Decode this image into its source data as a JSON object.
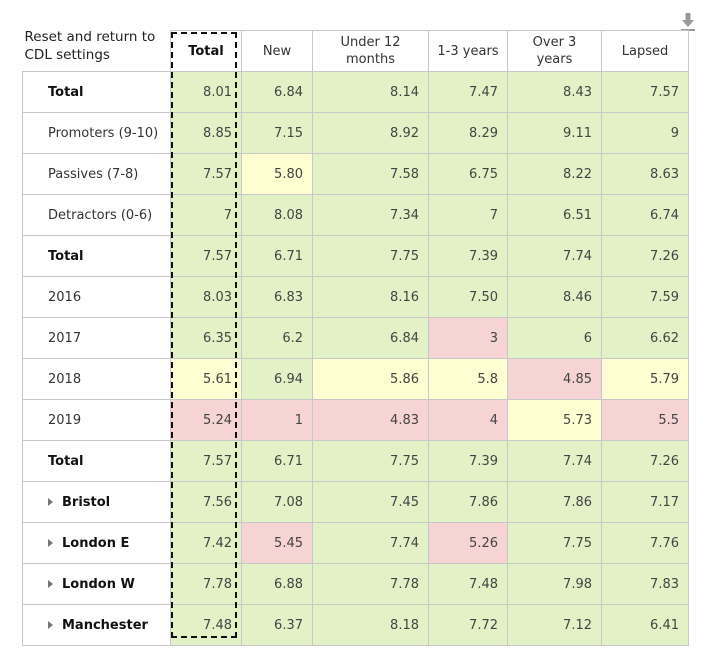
{
  "reset_link": "Reset and return to CDL settings",
  "download_icon": "download-icon",
  "columns": [
    "Total",
    "New",
    "Under 12 months",
    "1-3 years",
    "Over 3 years",
    "Lapsed"
  ],
  "rows": [
    {
      "label": "Total",
      "values": [
        "8.01",
        "6.84",
        "8.14",
        "7.47",
        "8.43",
        "7.57"
      ]
    },
    {
      "label": "Promoters (9-10)",
      "values": [
        "8.85",
        "7.15",
        "8.92",
        "8.29",
        "9.11",
        "9"
      ]
    },
    {
      "label": "Passives (7-8)",
      "values": [
        "7.57",
        "5.80",
        "7.58",
        "6.75",
        "8.22",
        "8.63"
      ]
    },
    {
      "label": "Detractors (0-6)",
      "values": [
        "7",
        "8.08",
        "7.34",
        "7",
        "6.51",
        "6.74"
      ]
    },
    {
      "label": "Total",
      "values": [
        "7.57",
        "6.71",
        "7.75",
        "7.39",
        "7.74",
        "7.26"
      ]
    },
    {
      "label": "2016",
      "values": [
        "8.03",
        "6.83",
        "8.16",
        "7.50",
        "8.46",
        "7.59"
      ]
    },
    {
      "label": "2017",
      "values": [
        "6.35",
        "6.2",
        "6.84",
        "3",
        "6",
        "6.62"
      ]
    },
    {
      "label": "2018",
      "values": [
        "5.61",
        "6.94",
        "5.86",
        "5.8",
        "4.85",
        "5.79"
      ]
    },
    {
      "label": "2019",
      "values": [
        "5.24",
        "1",
        "4.83",
        "4",
        "5.73",
        "5.5"
      ]
    },
    {
      "label": "Total",
      "values": [
        "7.57",
        "6.71",
        "7.75",
        "7.39",
        "7.74",
        "7.26"
      ]
    },
    {
      "label": "Bristol",
      "values": [
        "7.56",
        "7.08",
        "7.45",
        "7.86",
        "7.86",
        "7.17"
      ]
    },
    {
      "label": "London E",
      "values": [
        "7.42",
        "5.45",
        "7.74",
        "5.26",
        "7.75",
        "7.76"
      ]
    },
    {
      "label": "London W",
      "values": [
        "7.78",
        "6.88",
        "7.78",
        "7.48",
        "7.98",
        "7.83"
      ]
    },
    {
      "label": "Manchester",
      "values": [
        "7.48",
        "6.37",
        "8.18",
        "7.72",
        "7.12",
        "6.41"
      ]
    }
  ],
  "colors": {
    "green": "#e3f1c6",
    "yellow": "#fefed2",
    "red": "#f6d4d4"
  }
}
